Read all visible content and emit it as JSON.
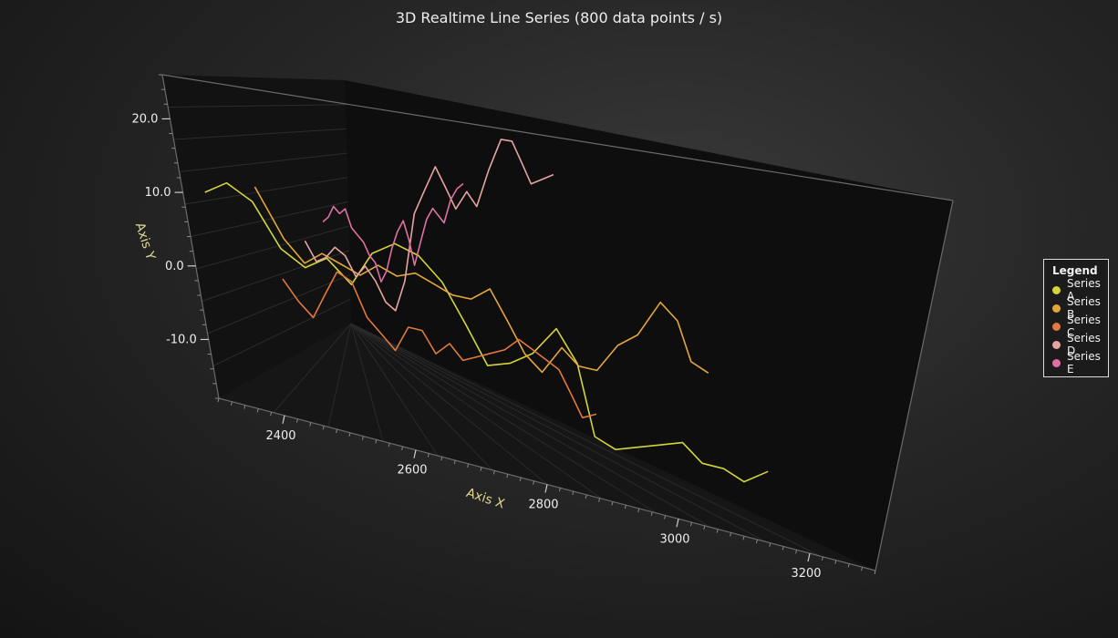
{
  "chart_data": {
    "type": "line",
    "title": "3D Realtime Line Series (800 data points / s)",
    "xlabel": "Axis X",
    "ylabel": "Axis Y",
    "x_ticks": [
      2400,
      2600,
      2800,
      3000,
      3200
    ],
    "y_ticks": [
      20.0,
      10.0,
      0.0,
      -10.0
    ],
    "y_tick_labels": [
      "20.0",
      "10.0",
      "0.0",
      "-10.0"
    ],
    "xlim": [
      2300,
      3300
    ],
    "ylim": [
      -18,
      26
    ],
    "grid": true,
    "legend_position": "right",
    "legend_title": "Legend",
    "series": [
      {
        "name": "Series A",
        "color": "#d4d43a",
        "x": [
          2280,
          2320,
          2360,
          2400,
          2440,
          2480,
          2520,
          2560,
          2600,
          2640,
          2680,
          2720,
          2760,
          2800,
          2840,
          2880,
          2920,
          2960,
          3000,
          3040,
          3080,
          3120,
          3160,
          3200,
          3240,
          3280
        ],
        "y": [
          9,
          11,
          9,
          3,
          1,
          3,
          0,
          5,
          7,
          6,
          3,
          -2,
          -7,
          -6,
          -4,
          0,
          -4,
          -13,
          -14,
          -13,
          -12,
          -11,
          -13,
          -13,
          -14,
          -12
        ]
      },
      {
        "name": "Series B",
        "color": "#e3a63a",
        "x": [
          2330,
          2380,
          2420,
          2460,
          2500,
          2540,
          2580,
          2620,
          2660,
          2700,
          2740,
          2780,
          2820,
          2860,
          2900,
          2940,
          2980,
          3020,
          3060,
          3100,
          3140,
          3180,
          3220,
          3260,
          3300
        ],
        "y": [
          10,
          3,
          0,
          2,
          1,
          0,
          2,
          1,
          2,
          1,
          0,
          0,
          2,
          -2,
          -6,
          -8,
          -4,
          -6,
          -6,
          -2,
          0,
          5,
          3,
          -2,
          -3
        ]
      },
      {
        "name": "Series C",
        "color": "#e07840",
        "x": [
          2320,
          2360,
          2400,
          2440,
          2480,
          2520,
          2560,
          2600,
          2640,
          2680,
          2720,
          2760,
          2800,
          2840,
          2880,
          2920,
          2960,
          3000,
          3040,
          3080,
          3120,
          3160,
          3200,
          3240
        ],
        "y": [
          -5,
          -8,
          -10,
          -6,
          -2,
          -3,
          -8,
          -10,
          -12,
          -8,
          -8,
          -11,
          -9,
          -11,
          -10,
          -9,
          -8,
          -6,
          -7,
          -8,
          -9,
          -12,
          -15,
          -14
        ]
      },
      {
        "name": "Series D",
        "color": "#e6a4a0",
        "x": [
          2340,
          2380,
          2420,
          2460,
          2500,
          2540,
          2580,
          2620,
          2660,
          2700,
          2740,
          2780,
          2820,
          2860,
          2900,
          2940,
          2980,
          3020,
          3060,
          3100,
          3140,
          3180,
          3220,
          3260,
          3300
        ],
        "y": [
          0,
          -3,
          -2,
          0,
          -1,
          -4,
          -2,
          -4,
          -7,
          -8,
          -3,
          8,
          12,
          16,
          13,
          10,
          13,
          11,
          17,
          22,
          22,
          19,
          16,
          17,
          18
        ]
      },
      {
        "name": "Series E",
        "color": "#e070a4",
        "x": [
          2340,
          2380,
          2420,
          2460,
          2500,
          2540,
          2580,
          2620,
          2660,
          2700,
          2740,
          2780,
          2820,
          2860,
          2900,
          2940,
          2980,
          3020,
          3060,
          3100,
          3140,
          3180,
          3220,
          3260,
          3300
        ],
        "y": [
          2,
          3,
          5,
          4,
          5,
          2,
          1,
          0,
          -2,
          -3,
          -6,
          -4,
          0,
          3,
          5,
          2,
          -2,
          2,
          6,
          8,
          7,
          6,
          10,
          12,
          13
        ]
      }
    ]
  }
}
